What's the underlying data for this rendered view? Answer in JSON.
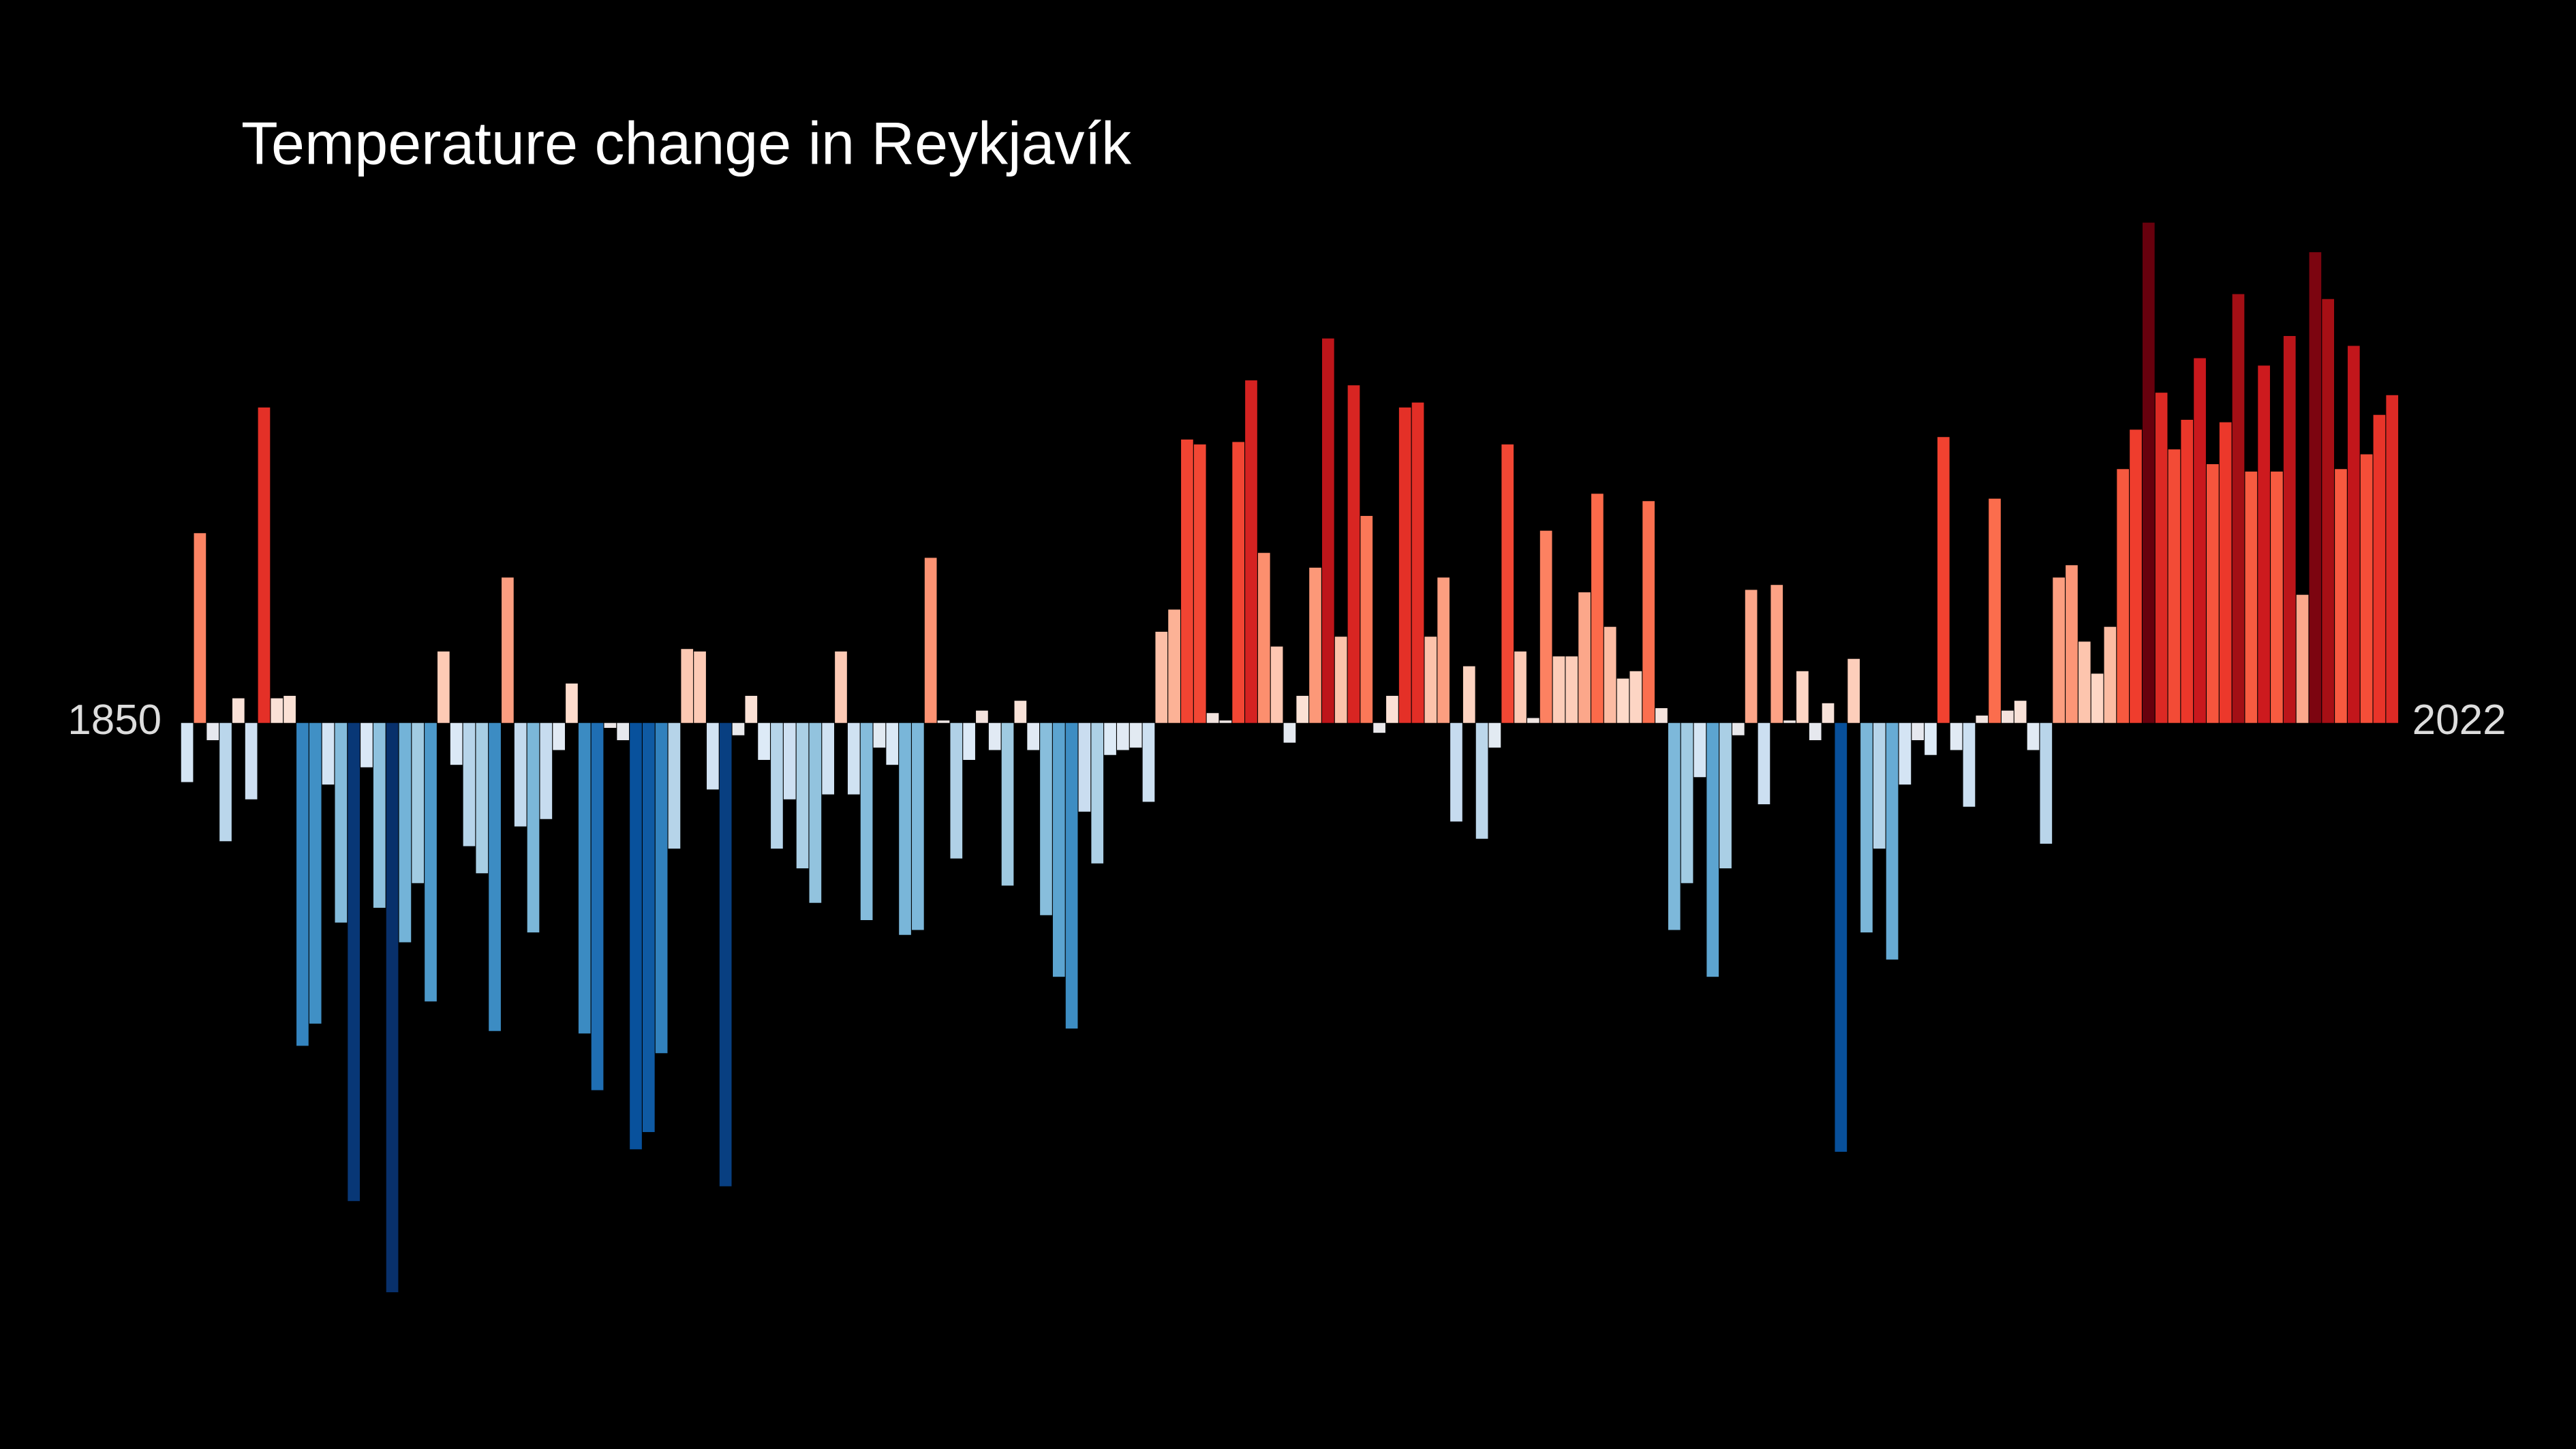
{
  "chart_data": {
    "type": "bar",
    "title": "Temperature change in Reykjavík",
    "categories": [
      "1850",
      null,
      null,
      null,
      null,
      null,
      null,
      null,
      null,
      null,
      null,
      null,
      null,
      null,
      null,
      null,
      null,
      null,
      null,
      null,
      null,
      null,
      null,
      null,
      null,
      null,
      null,
      null,
      null,
      null,
      null,
      null,
      null,
      null,
      null,
      null,
      null,
      null,
      null,
      null,
      null,
      null,
      null,
      null,
      null,
      null,
      null,
      null,
      null,
      null,
      null,
      null,
      null,
      null,
      null,
      null,
      null,
      null,
      null,
      null,
      null,
      null,
      null,
      null,
      null,
      null,
      null,
      null,
      null,
      null,
      null,
      null,
      null,
      null,
      null,
      null,
      null,
      null,
      null,
      null,
      null,
      null,
      null,
      null,
      null,
      null,
      null,
      null,
      null,
      null,
      null,
      null,
      null,
      null,
      null,
      null,
      null,
      null,
      null,
      null,
      null,
      null,
      null,
      null,
      null,
      null,
      null,
      null,
      null,
      null,
      null,
      null,
      null,
      null,
      null,
      null,
      null,
      null,
      null,
      null,
      null,
      null,
      null,
      null,
      null,
      null,
      null,
      null,
      null,
      null,
      null,
      null,
      null,
      null,
      null,
      null,
      null,
      null,
      null,
      null,
      null,
      null,
      null,
      null,
      null,
      null,
      null,
      null,
      null,
      null,
      null,
      null,
      null,
      null,
      null,
      null,
      null,
      null,
      null,
      null,
      null,
      null,
      null,
      null,
      null,
      null,
      null,
      null,
      null,
      null,
      null,
      null,
      "2022"
    ],
    "values": [
      -0.24,
      0.77,
      -0.07,
      -0.48,
      0.1,
      -0.31,
      1.28,
      0.1,
      0.11,
      -1.31,
      -1.22,
      -0.25,
      -0.81,
      -1.94,
      -0.18,
      -0.75,
      -2.31,
      -0.89,
      -0.65,
      -1.13,
      0.29,
      -0.17,
      -0.5,
      -0.61,
      -1.25,
      0.59,
      -0.42,
      -0.85,
      -0.39,
      -0.11,
      0.16,
      -1.26,
      -1.49,
      -0.02,
      -0.07,
      -1.73,
      -1.66,
      -1.34,
      -0.51,
      0.3,
      0.29,
      -0.27,
      -1.88,
      -0.05,
      0.11,
      -0.15,
      -0.51,
      -0.31,
      -0.59,
      -0.73,
      -0.29,
      0.29,
      -0.29,
      -0.8,
      -0.1,
      -0.17,
      -0.86,
      -0.84,
      0.67,
      0.01,
      -0.55,
      -0.15,
      0.05,
      -0.11,
      -0.66,
      0.09,
      -0.11,
      -0.78,
      -1.03,
      -1.24,
      -0.36,
      -0.57,
      -0.13,
      -0.11,
      -0.1,
      -0.32,
      0.37,
      0.46,
      1.15,
      1.13,
      0.04,
      0.01,
      1.14,
      1.39,
      0.69,
      0.31,
      -0.08,
      0.11,
      0.63,
      1.56,
      0.35,
      1.37,
      0.84,
      -0.04,
      0.11,
      1.28,
      1.3,
      0.35,
      0.59,
      -0.4,
      0.23,
      -0.47,
      -0.1,
      1.13,
      0.29,
      0.02,
      0.78,
      0.27,
      0.27,
      0.53,
      0.93,
      0.39,
      0.18,
      0.21,
      0.9,
      0.06,
      -0.84,
      -0.65,
      -0.22,
      -1.03,
      -0.59,
      -0.05,
      0.54,
      -0.33,
      0.56,
      0.01,
      0.21,
      -0.07,
      0.08,
      -1.74,
      0.26,
      -0.85,
      -0.51,
      -0.96,
      -0.25,
      -0.07,
      -0.13,
      1.16,
      -0.11,
      -0.34,
      0.03,
      0.91,
      0.05,
      0.09,
      -0.11,
      -0.49,
      0.59,
      0.64,
      0.33,
      0.2,
      0.39,
      1.03,
      1.19,
      2.03,
      1.34,
      1.11,
      1.23,
      1.48,
      1.05,
      1.22,
      1.74,
      1.02,
      1.45,
      1.02,
      1.57,
      0.52,
      1.91,
      1.72,
      1.03,
      1.53,
      1.09,
      1.25,
      1.33
    ],
    "ylim": [
      -2.6,
      2.6
    ],
    "color_range": [
      -2.0,
      2.0
    ],
    "color_scale": [
      "#08306b",
      "#08519c",
      "#2171b5",
      "#4292c6",
      "#6baed6",
      "#9ecae1",
      "#c6dbef",
      "#deebf7",
      "#fee0d2",
      "#fcbba1",
      "#fc9272",
      "#fb6a4a",
      "#ef3b2c",
      "#cb181d",
      "#a50f15",
      "#67000d"
    ]
  }
}
